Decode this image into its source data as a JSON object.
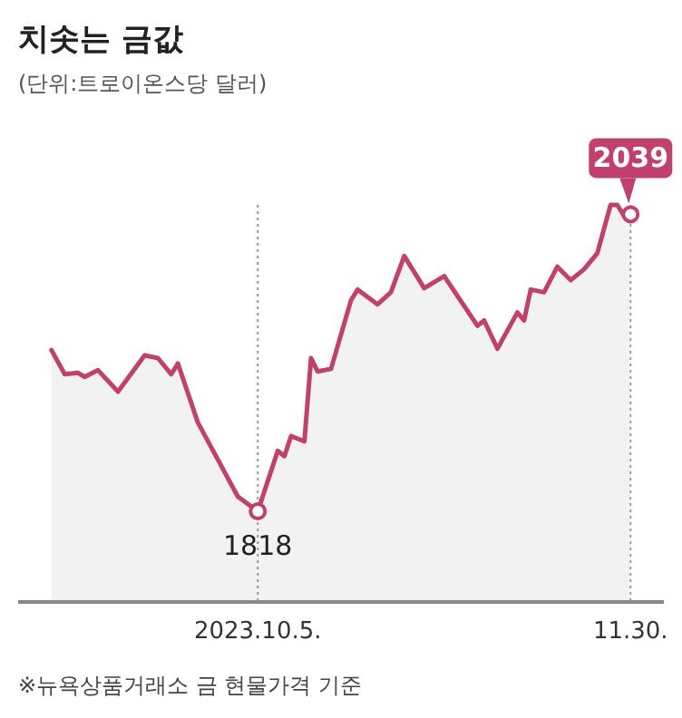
{
  "chart_data": {
    "type": "area",
    "title": "치솟는 금값",
    "subtitle": "(단위:트로이온스당 달러)",
    "annotations": [
      "※뉴욕상품거래소 금 현물가격 기준"
    ],
    "xlim": [
      "2023-08-30",
      "2023-12-05"
    ],
    "tick_labels": "x",
    "ref_lines": [
      {
        "axis": "x",
        "value": "2023-10-05",
        "color": "#999999",
        "line_style": "dotted"
      },
      {
        "axis": "x",
        "value": "2023-11-30",
        "color": "#999999",
        "line_style": "dotted"
      }
    ],
    "xticks": [
      {
        "value": "2023-10-05",
        "label": "2023.10.5."
      },
      {
        "value": "2023-11-30",
        "label": "11.30."
      }
    ],
    "series": [
      {
        "color": "#c0406e",
        "x": [
          "2023-09-04",
          "2023-09-06",
          "2023-09-08",
          "2023-09-09",
          "2023-09-11",
          "2023-09-14",
          "2023-09-18",
          "2023-09-20",
          "2023-09-22",
          "2023-09-23",
          "2023-09-26",
          "2023-10-02",
          "2023-10-05",
          "2023-10-08",
          "2023-10-09",
          "2023-10-10",
          "2023-10-12",
          "2023-10-13",
          "2023-10-14",
          "2023-10-16",
          "2023-10-19",
          "2023-10-20",
          "2023-10-23",
          "2023-10-25",
          "2023-10-27",
          "2023-10-30",
          "2023-11-02",
          "2023-11-07",
          "2023-11-08",
          "2023-11-10",
          "2023-11-13",
          "2023-11-14",
          "2023-11-15",
          "2023-11-17",
          "2023-11-19",
          "2023-11-21",
          "2023-11-23",
          "2023-11-25",
          "2023-11-27",
          "2023-11-28",
          "2023-11-29",
          "2023-11-30"
        ],
        "values": [
          1938,
          1920,
          1921,
          1918,
          1923,
          1907,
          1934,
          1932,
          1920,
          1928,
          1884,
          1829,
          1818,
          1863,
          1859,
          1874,
          1870,
          1932,
          1922,
          1924,
          1975,
          1983,
          1972,
          1981,
          2008,
          1984,
          1993,
          1956,
          1960,
          1939,
          1966,
          1960,
          1983,
          1981,
          2000,
          1990,
          1998,
          2010,
          2046,
          2046,
          2038,
          2039
        ],
        "value_labels": [
          null,
          null,
          null,
          null,
          null,
          null,
          null,
          null,
          null,
          null,
          null,
          null,
          "1818",
          null,
          null,
          null,
          null,
          null,
          null,
          null,
          null,
          null,
          null,
          null,
          null,
          null,
          null,
          null,
          null,
          null,
          null,
          null,
          null,
          null,
          null,
          null,
          null,
          null,
          null,
          null,
          null,
          "2039"
        ]
      }
    ]
  }
}
